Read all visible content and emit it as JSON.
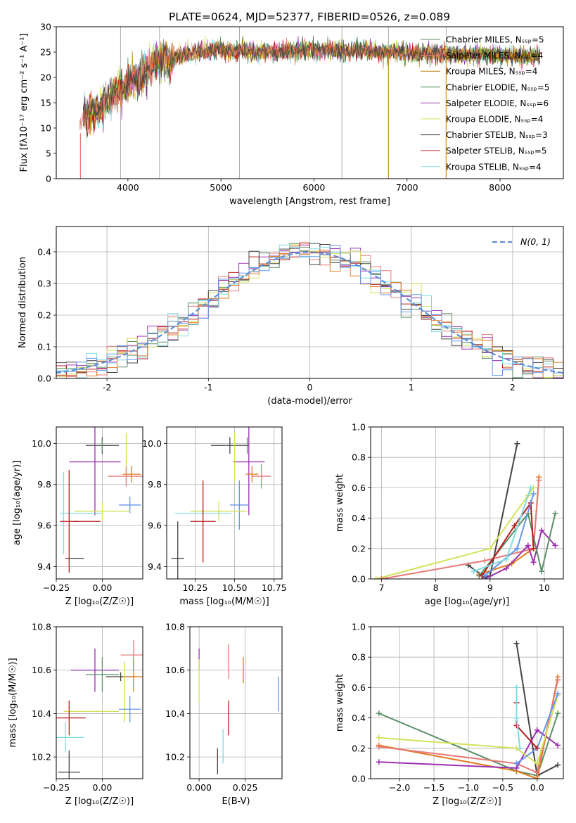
{
  "figure_title": "PLATE=0624, MJD=52377, FIBERID=0526, z=0.089",
  "chart_data": [
    {
      "id": "spectrum",
      "type": "line",
      "title": "PLATE=0624, MJD=52377, FIBERID=0526, z=0.089",
      "xlabel": "wavelength [Angstrom, rest frame]",
      "ylabel": "Flux [fλ10⁻¹⁷ erg cm⁻² s⁻¹ A⁻¹]",
      "xlim": [
        3230,
        8680
      ],
      "ylim": [
        0,
        30
      ],
      "xticks": [
        4000,
        5000,
        6000,
        7000,
        8000
      ],
      "yticks": [
        0,
        5,
        10,
        15,
        20,
        25,
        30
      ],
      "grid": false,
      "legend_position": "right",
      "legend": [
        {
          "label": "Chabrier MILES, N_SSP=5",
          "color": "#5b8f67"
        },
        {
          "label": "Salpeter MILES, N_SSP=4",
          "color": "#e67a78"
        },
        {
          "label": "Kroupa MILES, N_SSP=4",
          "color": "#b8860b"
        },
        {
          "label": "Chabrier ELODIE, N_SSP=5",
          "color": "#4d8a57"
        },
        {
          "label": "Salpeter ELODIE, N_SSP=6",
          "color": "#9b30b0"
        },
        {
          "label": "Kroupa ELODIE, N_SSP=4",
          "color": "#d4e157"
        },
        {
          "label": "Chabrier STELIB, N_SSP=3",
          "color": "#444444"
        },
        {
          "label": "Salpeter STELIB, N_SSP=5",
          "color": "#b71c1c"
        },
        {
          "label": "Kroupa STELIB, N_SSP=4",
          "color": "#7fdbe0"
        }
      ],
      "continuum_anchors": {
        "x": [
          3500,
          3700,
          3900,
          4100,
          4300,
          4600,
          5000,
          5500,
          6000,
          6500,
          7000,
          7500,
          8000,
          8400
        ],
        "y": [
          12,
          14,
          17.5,
          20,
          22.5,
          24.5,
          25.5,
          25,
          25.5,
          25.2,
          24.8,
          24.5,
          24.3,
          24.2
        ]
      },
      "data_start_x": 3480,
      "data_end_x": 8430,
      "vertical_spikes_x": [
        3920,
        4340,
        5200,
        6300,
        6800,
        7420
      ]
    },
    {
      "id": "residual-histogram",
      "type": "histogram",
      "xlabel": "(data-model)/error",
      "ylabel": "Normed distribution",
      "xlim": [
        -2.5,
        2.5
      ],
      "ylim": [
        0,
        0.48
      ],
      "xticks": [
        -2,
        -1,
        0,
        1,
        2
      ],
      "yticks": [
        0.0,
        0.1,
        0.2,
        0.3,
        0.4
      ],
      "grid": true,
      "legend": [
        {
          "label": "N(0, 1)",
          "color": "#5b8fd8",
          "style": "dashed"
        }
      ],
      "bin_width": 0.1,
      "normal_pdf": {
        "mean": 0,
        "sd": 1
      },
      "series_colors": [
        "#e67a78",
        "#9b30b0",
        "#5b8f67",
        "#d4e157",
        "#b71c1c",
        "#444444",
        "#7fdbe0",
        "#e07a1f",
        "#6495ed"
      ]
    },
    {
      "id": "age-vs-Z",
      "type": "errorbar",
      "xlabel": "Z [log₁₀(Z/Z☉)]",
      "ylabel": "age  [log₁₀(age/yr)]",
      "xlim": [
        -0.25,
        0.22
      ],
      "ylim": [
        9.34,
        10.08
      ],
      "xticks": [
        -0.25,
        0.0
      ],
      "xtick_labels": [
        "−0.25",
        "0.00"
      ],
      "yticks": [
        9.4,
        9.6,
        9.8,
        10.0
      ],
      "grid": true,
      "points": [
        {
          "x": 0.0,
          "y": 9.99,
          "xerr": 0.09,
          "yerr": 0.04,
          "color": "#444444"
        },
        {
          "x": 0.0,
          "y": 9.99,
          "xerr": 0.0,
          "yerr": 0.03,
          "color": "#5b8f67"
        },
        {
          "x": 0.13,
          "y": 9.93,
          "xerr": 0.0,
          "yerr": 0.12,
          "color": "#d4e157"
        },
        {
          "x": -0.04,
          "y": 9.91,
          "xerr": 0.14,
          "yerr": 0.26,
          "color": "#9b30b0"
        },
        {
          "x": 0.13,
          "y": 9.84,
          "xerr": 0.1,
          "yerr": 0.05,
          "color": "#e67a78"
        },
        {
          "x": 0.16,
          "y": 9.85,
          "xerr": 0.05,
          "yerr": 0.04,
          "color": "#e07a1f"
        },
        {
          "x": 0.15,
          "y": 9.7,
          "xerr": 0.06,
          "yerr": 0.04,
          "color": "#6495ed"
        },
        {
          "x": 0.0,
          "y": 9.67,
          "xerr": 0.15,
          "yerr": 0.05,
          "color": "#d4e157"
        },
        {
          "x": -0.21,
          "y": 9.66,
          "xerr": 0.02,
          "yerr": 0.2,
          "color": "#7fdbe0"
        },
        {
          "x": -0.1,
          "y": 9.66,
          "xerr": 0.1,
          "yerr": 0.0,
          "color": "#7fdbe0"
        },
        {
          "x": -0.08,
          "y": 9.62,
          "xerr": 0.07,
          "yerr": 0.0,
          "color": "#b71c1c"
        },
        {
          "x": -0.18,
          "y": 9.62,
          "xerr": 0.05,
          "yerr": 0.25,
          "color": "#b71c1c"
        },
        {
          "x": -0.15,
          "y": 9.44,
          "xerr": 0.05,
          "yerr": 0.0,
          "color": "#444444"
        }
      ]
    },
    {
      "id": "age-vs-mass",
      "type": "errorbar",
      "xlabel": "mass [log₁₀(M/M☉)]",
      "xlim": [
        10.07,
        10.8
      ],
      "ylim": [
        9.34,
        10.08
      ],
      "xticks": [
        10.25,
        10.5,
        10.75
      ],
      "xtick_labels": [
        "10.25",
        "10.50",
        "10.75"
      ],
      "yticks": [
        9.4,
        9.6,
        9.8,
        10.0
      ],
      "grid": true,
      "points": [
        {
          "x": 10.47,
          "y": 9.99,
          "xerr": 0.12,
          "yerr": 0.04,
          "color": "#444444"
        },
        {
          "x": 10.58,
          "y": 9.99,
          "xerr": 0.0,
          "yerr": 0.04,
          "color": "#5b8f67"
        },
        {
          "x": 10.59,
          "y": 9.91,
          "xerr": 0.1,
          "yerr": 0.26,
          "color": "#9b30b0"
        },
        {
          "x": 10.5,
          "y": 9.93,
          "xerr": 0.0,
          "yerr": 0.12,
          "color": "#d4e157"
        },
        {
          "x": 10.67,
          "y": 9.84,
          "xerr": 0.06,
          "yerr": 0.06,
          "color": "#e67a78"
        },
        {
          "x": 10.61,
          "y": 9.85,
          "xerr": 0.04,
          "yerr": 0.04,
          "color": "#e07a1f"
        },
        {
          "x": 10.53,
          "y": 9.7,
          "xerr": 0.06,
          "yerr": 0.12,
          "color": "#6495ed"
        },
        {
          "x": 10.4,
          "y": 9.67,
          "xerr": 0.18,
          "yerr": 0.05,
          "color": "#d4e157"
        },
        {
          "x": 10.3,
          "y": 9.66,
          "xerr": 0.18,
          "yerr": 0.05,
          "color": "#7fdbe0"
        },
        {
          "x": 10.3,
          "y": 9.62,
          "xerr": 0.08,
          "yerr": 0.2,
          "color": "#b71c1c"
        },
        {
          "x": 10.14,
          "y": 9.44,
          "xerr": 0.04,
          "yerr": 0.18,
          "color": "#444444"
        }
      ]
    },
    {
      "id": "weight-vs-age",
      "type": "line",
      "xlabel": "age  [log₁₀(age/yr)]",
      "ylabel": "mass weight",
      "xlim": [
        6.8,
        10.35
      ],
      "ylim": [
        0,
        1
      ],
      "xticks": [
        7,
        8,
        9,
        10
      ],
      "yticks": [
        0.0,
        0.2,
        0.4,
        0.6,
        0.8,
        1.0
      ],
      "grid": true,
      "series": [
        {
          "color": "#444444",
          "x": [
            8.6,
            8.9,
            9.0,
            9.5
          ],
          "y": [
            0.09,
            0.01,
            0.02,
            0.89
          ]
        },
        {
          "color": "#d4e157",
          "x": [
            6.9,
            9.0,
            9.7,
            9.8
          ],
          "y": [
            0.0,
            0.2,
            0.55,
            0.6
          ]
        },
        {
          "color": "#e07a1f",
          "x": [
            8.8,
            9.4,
            9.8,
            9.9
          ],
          "y": [
            0.03,
            0.1,
            0.2,
            0.67
          ]
        },
        {
          "color": "#e67a78",
          "x": [
            7.0,
            8.9,
            9.8,
            9.9
          ],
          "y": [
            0.0,
            0.12,
            0.2,
            0.65
          ]
        },
        {
          "color": "#9b30b0",
          "x": [
            8.9,
            9.3,
            9.7,
            9.8,
            9.95,
            10.2
          ],
          "y": [
            0.0,
            0.07,
            0.22,
            0.11,
            0.32,
            0.22
          ]
        },
        {
          "color": "#5b8f67",
          "x": [
            8.8,
            9.7,
            9.95,
            10.2
          ],
          "y": [
            0.02,
            0.43,
            0.05,
            0.43
          ]
        },
        {
          "color": "#b71c1c",
          "x": [
            8.85,
            9.45,
            9.75,
            9.8
          ],
          "y": [
            0.02,
            0.35,
            0.5,
            0.2
          ]
        },
        {
          "color": "#6495ed",
          "x": [
            8.9,
            9.5,
            9.8
          ],
          "y": [
            0.02,
            0.2,
            0.56
          ]
        },
        {
          "color": "#7fdbe0",
          "x": [
            8.7,
            9.3,
            9.75
          ],
          "y": [
            0.05,
            0.13,
            0.6
          ]
        }
      ]
    },
    {
      "id": "mass-vs-Z",
      "type": "errorbar",
      "xlabel": "Z [log₁₀(Z/Z☉)]",
      "ylabel": "mass [log₁₀(M/M☉)]",
      "xlim": [
        -0.25,
        0.22
      ],
      "ylim": [
        10.1,
        10.8
      ],
      "xticks": [
        -0.25,
        0.0
      ],
      "xtick_labels": [
        "−0.25",
        "0.00"
      ],
      "yticks": [
        10.2,
        10.4,
        10.6,
        10.8
      ],
      "grid": true,
      "points": [
        {
          "x": 0.17,
          "y": 10.67,
          "xerr": 0.07,
          "yerr": 0.07,
          "color": "#e67a78"
        },
        {
          "x": -0.04,
          "y": 10.6,
          "xerr": 0.13,
          "yerr": 0.1,
          "color": "#9b30b0"
        },
        {
          "x": 0.0,
          "y": 10.58,
          "xerr": 0.09,
          "yerr": 0.08,
          "color": "#5b8f67"
        },
        {
          "x": 0.1,
          "y": 10.57,
          "xerr": 0.08,
          "yerr": 0.02,
          "color": "#444444"
        },
        {
          "x": 0.17,
          "y": 10.57,
          "xerr": 0.05,
          "yerr": 0.07,
          "color": "#e07a1f"
        },
        {
          "x": 0.12,
          "y": 10.5,
          "xerr": 0.0,
          "yerr": 0.14,
          "color": "#d4e157"
        },
        {
          "x": 0.15,
          "y": 10.42,
          "xerr": 0.06,
          "yerr": 0.06,
          "color": "#6495ed"
        },
        {
          "x": -0.06,
          "y": 10.41,
          "xerr": 0.15,
          "yerr": 0.0,
          "color": "#d4e157"
        },
        {
          "x": -0.18,
          "y": 10.38,
          "xerr": 0.09,
          "yerr": 0.08,
          "color": "#b71c1c"
        },
        {
          "x": -0.2,
          "y": 10.29,
          "xerr": 0.1,
          "yerr": 0.07,
          "color": "#7fdbe0"
        },
        {
          "x": -0.18,
          "y": 10.13,
          "xerr": 0.06,
          "yerr": 0.1,
          "color": "#444444"
        }
      ]
    },
    {
      "id": "mass-vs-ebv",
      "type": "errorbar",
      "xlabel": "E(B-V)",
      "xlim": [
        -0.005,
        0.045
      ],
      "ylim": [
        10.1,
        10.8
      ],
      "xticks": [
        0.0,
        0.025
      ],
      "xtick_labels": [
        "0.000",
        "0.025"
      ],
      "yticks": [
        10.2,
        10.4,
        10.6,
        10.8
      ],
      "grid": true,
      "points": [
        {
          "x": 0.016,
          "y": 10.64,
          "xerr": 0.0,
          "yerr": 0.08,
          "color": "#e67a78"
        },
        {
          "x": 0.024,
          "y": 10.6,
          "xerr": 0.0,
          "yerr": 0.06,
          "color": "#e07a1f"
        },
        {
          "x": 0.0,
          "y": 10.65,
          "xerr": 0.0,
          "yerr": 0.05,
          "color": "#9b30b0"
        },
        {
          "x": 0.0,
          "y": 10.55,
          "xerr": 0.0,
          "yerr": 0.1,
          "color": "#d4e157"
        },
        {
          "x": 0.043,
          "y": 10.49,
          "xerr": 0.0,
          "yerr": 0.08,
          "color": "#6495ed"
        },
        {
          "x": 0.016,
          "y": 10.38,
          "xerr": 0.0,
          "yerr": 0.08,
          "color": "#b71c1c"
        },
        {
          "x": 0.013,
          "y": 10.25,
          "xerr": 0.0,
          "yerr": 0.08,
          "color": "#7fdbe0"
        },
        {
          "x": 0.01,
          "y": 10.18,
          "xerr": 0.0,
          "yerr": 0.06,
          "color": "#444444"
        }
      ]
    },
    {
      "id": "weight-vs-Z",
      "type": "line",
      "xlabel": "Z [log₁₀(Z/Z☉)]",
      "ylabel": "mass weight",
      "xlim": [
        -2.42,
        0.38
      ],
      "ylim": [
        0,
        1
      ],
      "xticks": [
        -2.0,
        -1.5,
        -1.0,
        -0.5,
        0.0
      ],
      "xtick_labels": [
        "−2.0",
        "−1.5",
        "−1.0",
        "−0.5",
        "0.0"
      ],
      "yticks": [
        0.0,
        0.2,
        0.4,
        0.6,
        0.8,
        1.0
      ],
      "grid": true,
      "series": [
        {
          "color": "#444444",
          "x": [
            -0.3,
            0.0,
            0.3
          ],
          "y": [
            0.89,
            0.02,
            0.09
          ]
        },
        {
          "color": "#5b8f67",
          "x": [
            -2.3,
            -0.3,
            0.0,
            0.3
          ],
          "y": [
            0.43,
            0.05,
            0.02,
            0.43
          ]
        },
        {
          "color": "#e07a1f",
          "x": [
            -2.3,
            -0.3,
            0.0,
            0.3
          ],
          "y": [
            0.22,
            0.05,
            0.0,
            0.67
          ]
        },
        {
          "color": "#e67a78",
          "x": [
            -2.3,
            -0.3,
            0.0,
            0.3
          ],
          "y": [
            0.21,
            0.1,
            0.04,
            0.65
          ]
        },
        {
          "color": "#9b30b0",
          "x": [
            -2.3,
            -0.3,
            0.0,
            0.3
          ],
          "y": [
            0.11,
            0.07,
            0.32,
            0.22
          ]
        },
        {
          "color": "#d4e157",
          "x": [
            -2.3,
            -0.3,
            0.0,
            0.3
          ],
          "y": [
            0.27,
            0.2,
            0.1,
            0.55
          ]
        },
        {
          "color": "#6495ed",
          "x": [
            -0.3,
            0.0,
            0.3
          ],
          "y": [
            0.1,
            0.2,
            0.56
          ]
        },
        {
          "color": "#b71c1c",
          "x": [
            -0.3,
            -0.3,
            0.0
          ],
          "y": [
            0.5,
            0.35,
            0.2
          ]
        },
        {
          "color": "#7fdbe0",
          "x": [
            -0.3,
            -0.3,
            -0.25
          ],
          "y": [
            0.6,
            0.4,
            0.2
          ]
        }
      ]
    }
  ]
}
